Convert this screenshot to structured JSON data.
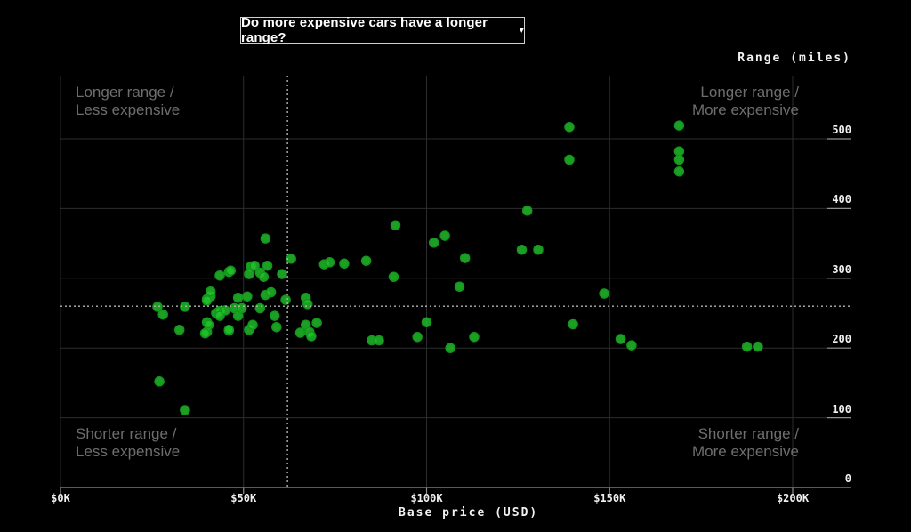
{
  "title_dropdown": {
    "label": "Do more expensive cars have a longer range?",
    "caret": "▾"
  },
  "chart_data": {
    "type": "scatter",
    "title": "Do more expensive cars have a longer range?",
    "xlabel": "Base price (USD)",
    "ylabel": "Range (miles)",
    "xlim": [
      0,
      200
    ],
    "ylim": [
      0,
      500
    ],
    "grid": true,
    "x_ticks": [
      {
        "value": 0,
        "label": "$0K"
      },
      {
        "value": 50,
        "label": "$50K"
      },
      {
        "value": 100,
        "label": "$100K"
      },
      {
        "value": 150,
        "label": "$150K"
      },
      {
        "value": 200,
        "label": "$200K"
      }
    ],
    "y_ticks": [
      {
        "value": 0,
        "label": "0"
      },
      {
        "value": 100,
        "label": "100"
      },
      {
        "value": 200,
        "label": "200"
      },
      {
        "value": 300,
        "label": "300"
      },
      {
        "value": 400,
        "label": "400"
      },
      {
        "value": 500,
        "label": "500"
      }
    ],
    "reference_lines": {
      "avg_price_k": 62,
      "avg_range_miles": 260
    },
    "quadrant_labels": {
      "top_left": [
        "Longer range /",
        "Less expensive"
      ],
      "top_right": [
        "Longer range /",
        "More expensive"
      ],
      "bottom_left": [
        "Shorter range /",
        "Less expensive"
      ],
      "bottom_right": [
        "Shorter range /",
        "More expensive"
      ]
    },
    "point_color": "#21c32b",
    "point_edge_color": "#15961d",
    "points_format": "[base_price_usd_k, range_miles]",
    "points": [
      [
        26.5,
        259
      ],
      [
        28,
        248
      ],
      [
        32.5,
        226
      ],
      [
        34,
        259
      ],
      [
        27,
        152
      ],
      [
        34,
        111
      ],
      [
        40,
        270
      ],
      [
        41,
        274
      ],
      [
        40,
        237
      ],
      [
        40.5,
        233
      ],
      [
        40,
        223
      ],
      [
        42.5,
        250
      ],
      [
        43.5,
        253
      ],
      [
        43.5,
        246
      ],
      [
        45,
        254
      ],
      [
        46,
        225
      ],
      [
        43.5,
        304
      ],
      [
        46,
        309
      ],
      [
        46.5,
        311
      ],
      [
        52,
        317
      ],
      [
        53,
        318
      ],
      [
        54.5,
        308
      ],
      [
        55.5,
        302
      ],
      [
        51.5,
        306
      ],
      [
        56.5,
        318
      ],
      [
        60.5,
        306
      ],
      [
        56,
        357
      ],
      [
        63,
        328
      ],
      [
        41,
        281
      ],
      [
        40,
        268
      ],
      [
        48.5,
        272
      ],
      [
        51,
        274
      ],
      [
        56,
        276
      ],
      [
        57.5,
        280
      ],
      [
        61.5,
        269
      ],
      [
        67,
        272
      ],
      [
        67.5,
        263
      ],
      [
        47.5,
        257
      ],
      [
        48.5,
        246
      ],
      [
        49.5,
        257
      ],
      [
        54.5,
        257
      ],
      [
        58.5,
        246
      ],
      [
        39.5,
        221
      ],
      [
        46,
        226
      ],
      [
        51.5,
        226
      ],
      [
        52.5,
        233
      ],
      [
        59,
        230
      ],
      [
        65.5,
        222
      ],
      [
        67,
        233
      ],
      [
        68,
        223
      ],
      [
        70,
        236
      ],
      [
        68.5,
        217
      ],
      [
        72,
        320
      ],
      [
        73.5,
        323
      ],
      [
        77.5,
        321
      ],
      [
        83.5,
        325
      ],
      [
        85,
        211
      ],
      [
        87,
        211
      ],
      [
        91.5,
        376
      ],
      [
        91,
        302
      ],
      [
        97.5,
        216
      ],
      [
        100,
        237
      ],
      [
        102,
        351
      ],
      [
        105,
        361
      ],
      [
        106.5,
        200
      ],
      [
        109,
        288
      ],
      [
        110.5,
        329
      ],
      [
        113,
        216
      ],
      [
        126,
        341
      ],
      [
        130.5,
        341
      ],
      [
        127.5,
        397
      ],
      [
        139,
        517
      ],
      [
        139,
        470
      ],
      [
        140,
        234
      ],
      [
        148.5,
        278
      ],
      [
        153,
        213
      ],
      [
        156,
        204
      ],
      [
        169,
        519
      ],
      [
        169,
        482
      ],
      [
        169,
        470
      ],
      [
        169,
        453
      ],
      [
        187.5,
        202
      ],
      [
        190.5,
        202
      ]
    ],
    "colors": {
      "background": "#000000",
      "gridline": "#2d2d2d",
      "axis": "#8f8f8f",
      "reference_dotted": "#b3b3b3",
      "tick_text": "#f0f0f0",
      "quadrant_text": "#6e6e6e"
    }
  }
}
